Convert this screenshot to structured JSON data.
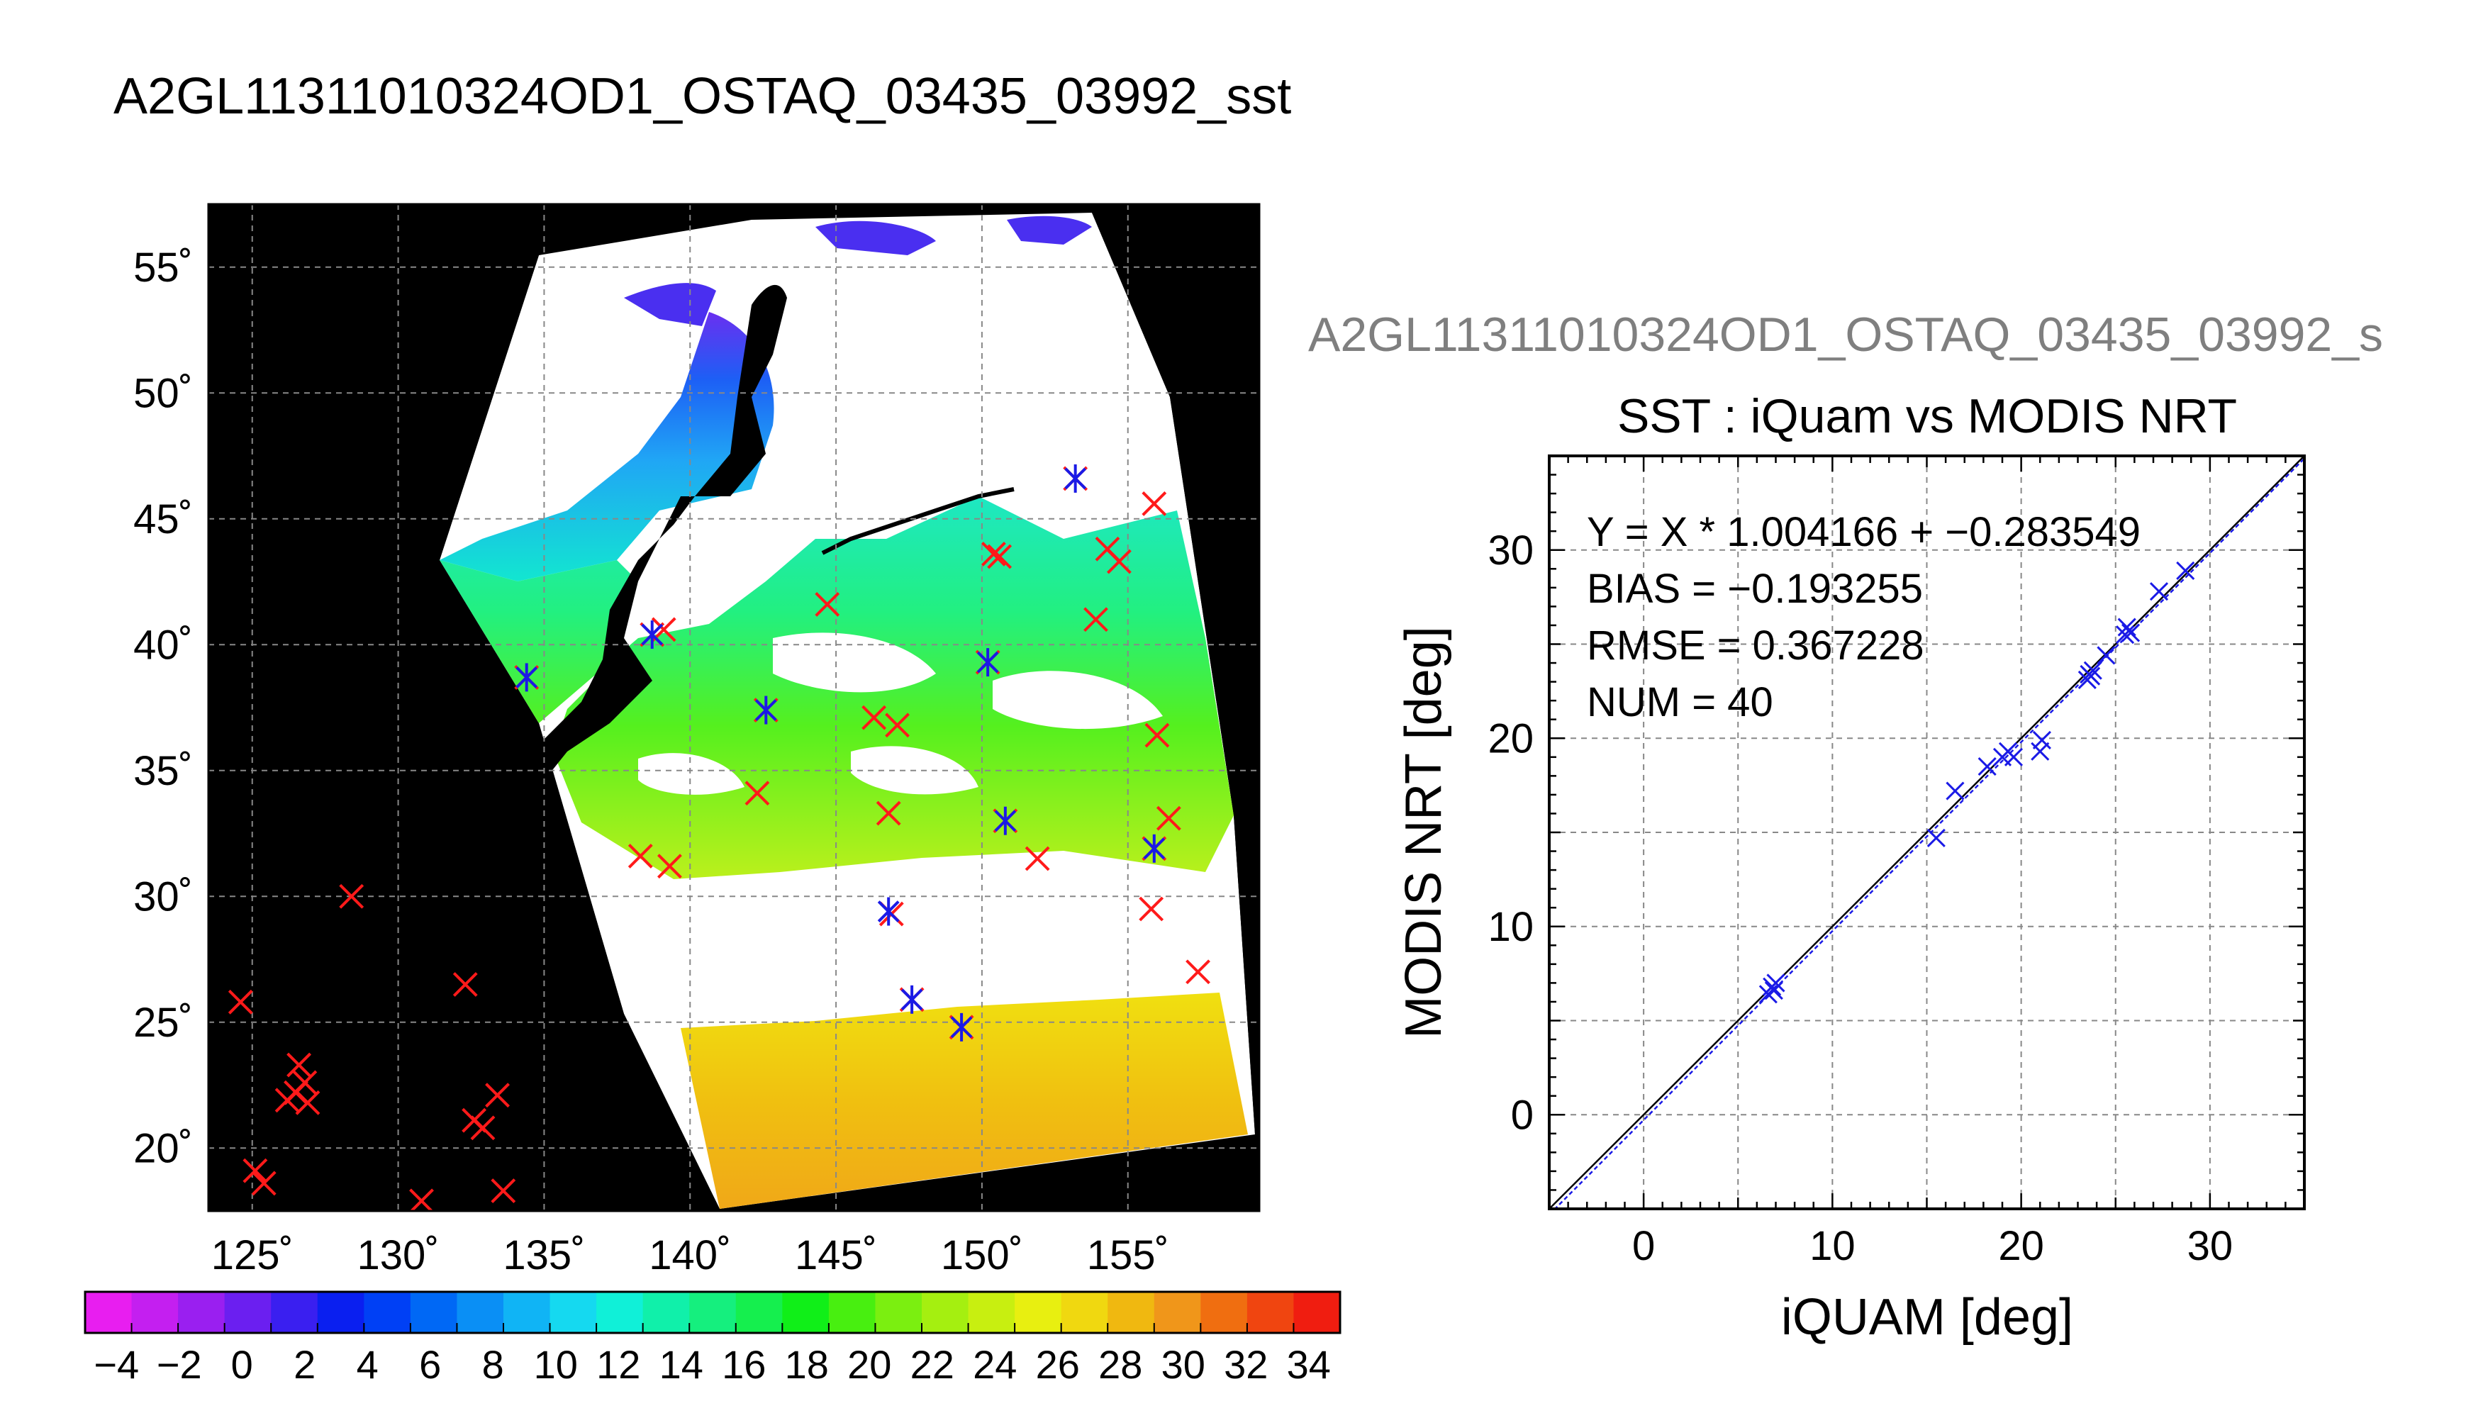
{
  "title": "A2GL11311010324OD1_OSTAQ_03435_03992_sst",
  "map": {
    "lon_ticks": [
      "125˚",
      "130˚",
      "135˚",
      "140˚",
      "145˚",
      "150˚",
      "155˚"
    ],
    "lat_ticks": [
      "20˚",
      "25˚",
      "30˚",
      "35˚",
      "40˚",
      "45˚",
      "50˚",
      "55˚"
    ],
    "lon_range": [
      123.5,
      159.5
    ],
    "lat_range": [
      17.5,
      57.5
    ]
  },
  "colorbar": {
    "labels": [
      "−4",
      "−2",
      "0",
      "2",
      "4",
      "6",
      "8",
      "10",
      "12",
      "14",
      "16",
      "18",
      "20",
      "22",
      "24",
      "26",
      "28",
      "30",
      "32",
      "34"
    ],
    "range": [
      -5,
      35
    ],
    "colors": [
      "#e81ef0",
      "#c41ff0",
      "#9a1ff0",
      "#6b1ff0",
      "#3a1ff0",
      "#0a1ff0",
      "#0040f5",
      "#0068f5",
      "#0a8ff5",
      "#10b4f5",
      "#15d9f0",
      "#10f0d8",
      "#10f0aa",
      "#15ef7e",
      "#15ef4e",
      "#10ef18",
      "#48ef10",
      "#7bef10",
      "#a5ef10",
      "#c8ef10",
      "#e8ef10",
      "#f0d810",
      "#f0b810",
      "#f0961a",
      "#f06e10",
      "#f04510",
      "#f01d10"
    ]
  },
  "scatter": {
    "header": "A2GL11311010324OD1_OSTAQ_03435_03992_s",
    "title": "SST : iQuam vs MODIS NRT",
    "xlabel": "iQUAM [deg]",
    "ylabel": "MODIS NRT [deg]",
    "xticks": [
      "0",
      "10",
      "20",
      "30"
    ],
    "yticks": [
      "0",
      "10",
      "20",
      "30"
    ],
    "stats": {
      "fit": "Y = X * 1.004166 + −0.283549",
      "bias": "BIAS = −0.193255",
      "rmse": "RMSE = 0.367228",
      "num": "NUM = 40"
    }
  },
  "chart_data": [
    {
      "type": "scatter",
      "title": "A2GL11311010324OD1_OSTAQ_03435_03992_sst",
      "xlabel": "",
      "ylabel": "",
      "xlim": [
        123.5,
        159.5
      ],
      "ylim": [
        17.5,
        57.5
      ],
      "grid": true,
      "colorbar": {
        "label": "",
        "range": [
          -5,
          35
        ]
      },
      "series": [
        {
          "marker_color": "#ff1a1a",
          "points": [
            [
              124.6,
              25.8
            ],
            [
              125.1,
              19.1
            ],
            [
              125.4,
              18.6
            ],
            [
              126.2,
              21.9
            ],
            [
              126.5,
              22.2
            ],
            [
              126.6,
              23.3
            ],
            [
              126.8,
              22.6
            ],
            [
              126.9,
              21.8
            ],
            [
              128.4,
              30.0
            ],
            [
              130.8,
              17.9
            ],
            [
              132.3,
              26.5
            ],
            [
              132.6,
              21.1
            ],
            [
              132.9,
              20.8
            ],
            [
              133.4,
              22.1
            ],
            [
              133.6,
              18.3
            ],
            [
              134.4,
              38.7
            ],
            [
              138.3,
              31.6
            ],
            [
              138.7,
              40.4
            ],
            [
              139.1,
              40.6
            ],
            [
              139.3,
              31.2
            ],
            [
              142.3,
              34.1
            ],
            [
              142.6,
              37.4
            ],
            [
              144.7,
              41.6
            ],
            [
              146.3,
              37.1
            ],
            [
              146.8,
              33.3
            ],
            [
              146.9,
              29.3
            ],
            [
              147.1,
              36.8
            ],
            [
              147.6,
              25.9
            ],
            [
              149.3,
              24.8
            ],
            [
              150.2,
              39.3
            ],
            [
              150.4,
              43.6
            ],
            [
              150.6,
              43.5
            ],
            [
              150.8,
              33.0
            ],
            [
              151.9,
              31.5
            ],
            [
              153.2,
              46.6
            ],
            [
              153.9,
              41.0
            ],
            [
              154.3,
              43.8
            ],
            [
              154.7,
              43.3
            ],
            [
              155.8,
              29.5
            ],
            [
              155.9,
              45.6
            ],
            [
              156.0,
              36.4
            ],
            [
              156.4,
              33.1
            ],
            [
              157.4,
              27.0
            ],
            [
              155.9,
              31.9
            ]
          ]
        },
        {
          "marker_color": "#1a1ae6",
          "points": [
            [
              134.4,
              38.7
            ],
            [
              138.7,
              40.4
            ],
            [
              142.6,
              37.4
            ],
            [
              146.8,
              29.4
            ],
            [
              147.6,
              25.9
            ],
            [
              149.3,
              24.8
            ],
            [
              150.2,
              39.3
            ],
            [
              150.8,
              33.0
            ],
            [
              153.2,
              46.6
            ],
            [
              155.9,
              31.9
            ]
          ]
        }
      ]
    },
    {
      "type": "scatter",
      "title": "SST : iQuam vs MODIS NRT",
      "xlabel": "iQUAM [deg]",
      "ylabel": "MODIS NRT [deg]",
      "xlim": [
        -5,
        35
      ],
      "ylim": [
        -5,
        35
      ],
      "grid": true,
      "series": [
        {
          "marker_color": "#1a1ae6",
          "x": [
            6.6,
            6.8,
            6.9,
            7.0,
            15.5,
            16.5,
            18.2,
            19.0,
            19.3,
            19.6,
            21.0,
            21.1,
            23.5,
            23.6,
            23.7,
            23.8,
            24.5,
            25.5,
            25.6,
            25.8,
            27.3,
            28.7
          ],
          "y": [
            6.4,
            6.8,
            6.6,
            7.0,
            14.7,
            17.2,
            18.5,
            19.0,
            19.3,
            19.0,
            19.3,
            19.9,
            23.1,
            23.4,
            23.3,
            23.6,
            24.4,
            25.5,
            25.9,
            25.6,
            27.8,
            28.9
          ]
        }
      ],
      "fit_line": {
        "slope": 1.004166,
        "intercept": -0.283549
      },
      "identity_line": true
    }
  ]
}
